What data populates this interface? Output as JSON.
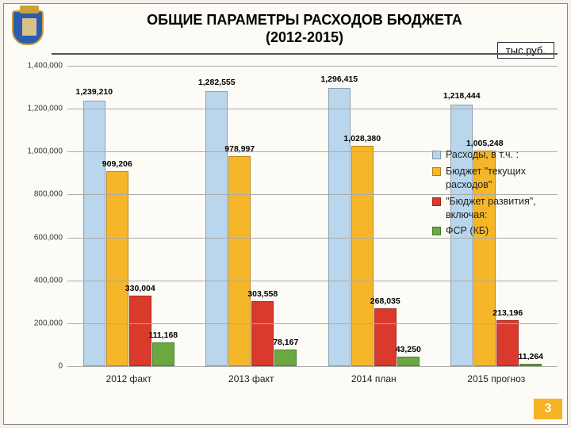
{
  "title_line1": "ОБЩИЕ ПАРАМЕТРЫ РАСХОДОВ БЮДЖЕТА",
  "title_line2": "(2012-2015)",
  "unit_label": "тыс.руб.",
  "page_number": "3",
  "chart": {
    "type": "bar",
    "ymax": 1400000,
    "ytick_step": 200000,
    "bg_color": "#fdfbf5",
    "grid_color": "#aaaaaa",
    "categories": [
      "2012 факт",
      "2013 факт",
      "2014 план",
      "2015 прогноз"
    ],
    "series": [
      {
        "name": "Расходы, в т.ч. :",
        "color": "#b9d6ec",
        "values": [
          1239210,
          1282555,
          1296415,
          1218444
        ],
        "labels": [
          "1,239,210",
          "1,282,555",
          "1,296,415",
          "1,218,444"
        ]
      },
      {
        "name": "Бюджет \"текущих расходов\"",
        "color": "#f6b62a",
        "values": [
          909206,
          978997,
          1028380,
          1005248
        ],
        "labels": [
          "909,206",
          "978,997",
          "1,028,380",
          "1,005,248"
        ]
      },
      {
        "name": "\"Бюджет развития\", включая:",
        "color": "#d93a2b",
        "values": [
          330004,
          303558,
          268035,
          213196
        ],
        "labels": [
          "330,004",
          "303,558",
          "268,035",
          "213,196"
        ]
      },
      {
        "name": "ФСР (КБ)",
        "color": "#6aa842",
        "values": [
          111168,
          78167,
          43250,
          11264
        ],
        "labels": [
          "111,168",
          "78,167",
          "43,250",
          "11,264"
        ]
      }
    ],
    "yticks": [
      0,
      200000,
      400000,
      600000,
      800000,
      1000000,
      1200000,
      1400000
    ],
    "ytick_labels": [
      "0",
      "200,000",
      "400,000",
      "600,000",
      "800,000",
      "1,000,000",
      "1,200,000",
      "1,400,000"
    ]
  }
}
